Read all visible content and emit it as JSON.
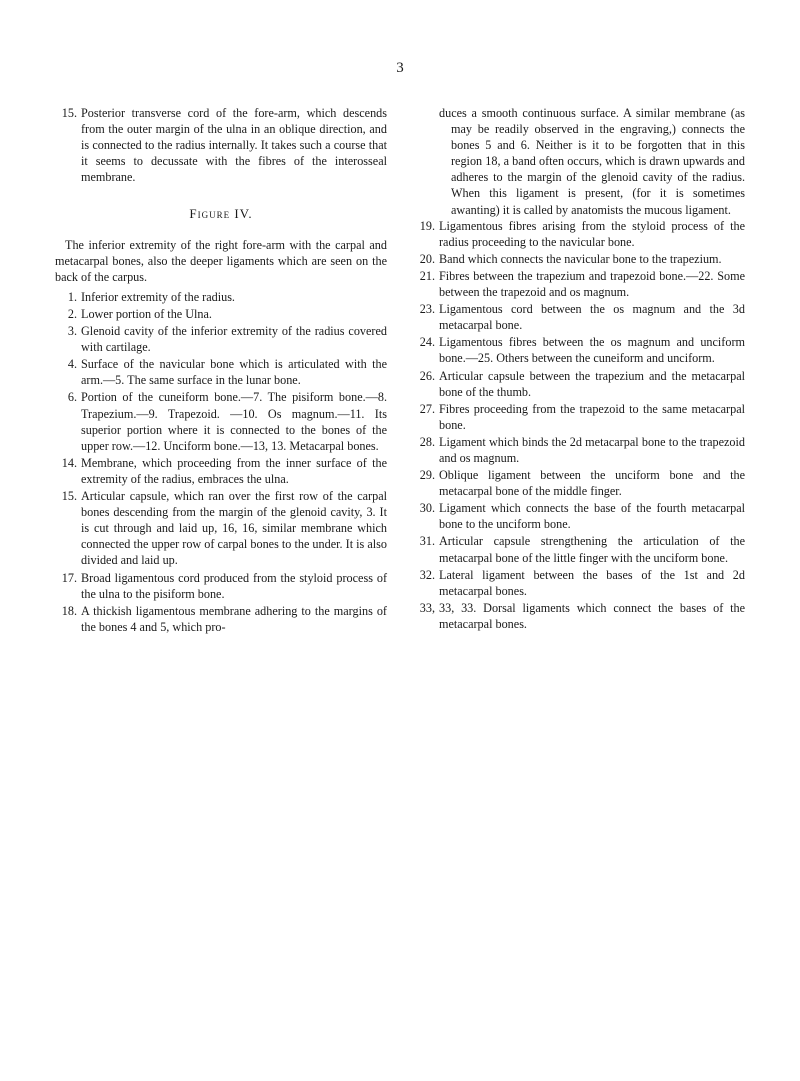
{
  "pageNumber": "3",
  "figureLabel": "Figure IV.",
  "leftColumn": {
    "item15": {
      "num": "15.",
      "text": "Posterior transverse cord of the fore-arm, which descends from the outer margin of the ulna in an oblique direction, and is connected to the radius internally. It takes such a course that it seems to decussate with the fibres of the interosseal membrane."
    },
    "intro": "The inferior extremity of the right fore-arm with the carpal and metacarpal bones, also the deeper ligaments which are seen on the back of the carpus.",
    "item1": {
      "num": "1.",
      "text": "Inferior extremity of the radius."
    },
    "item2": {
      "num": "2.",
      "text": "Lower portion of the Ulna."
    },
    "item3": {
      "num": "3.",
      "text": "Glenoid cavity of the inferior extremity of the radius covered with cartilage."
    },
    "item4": {
      "num": "4.",
      "text": "Surface of the navicular bone which is articulated with the arm.—5. The same surface in the lunar bone."
    },
    "item6": {
      "num": "6.",
      "text": "Portion of the cuneiform bone.—7. The pisiform bone.—8. Trapezium.—9. Trapezoid. —10. Os magnum.—11. Its superior portion where it is connected to the bones of the upper row.—12. Unciform bone.—13, 13. Metacarpal bones."
    },
    "item14": {
      "num": "14.",
      "text": "Membrane, which proceeding from the inner surface of the extremity of the radius, embraces the ulna."
    },
    "item15b": {
      "num": "15.",
      "text": "Articular capsule, which ran over the first row of the carpal bones descending from the margin of the glenoid cavity, 3. It is cut through and laid up, 16, 16, similar membrane which connected the upper row of carpal bones to the under. It is also divided and laid up."
    },
    "item17": {
      "num": "17.",
      "text": "Broad ligamentous cord produced from the styloid process of the ulna to the pisiform bone."
    },
    "item18": {
      "num": "18.",
      "text": "A thickish ligamentous membrane adhering to the margins of the bones 4 and 5, which pro-"
    }
  },
  "rightColumn": {
    "cont": "duces a smooth continuous surface. A similar membrane (as may be readily observed in the engraving,) connects the bones 5 and 6. Neither is it to be forgotten that in this region 18, a band often occurs, which is drawn upwards and adheres to the margin of the glenoid cavity of the radius. When this ligament is present, (for it is sometimes awanting) it is called by anatomists the mucous ligament.",
    "item19": {
      "num": "19.",
      "text": "Ligamentous fibres arising from the styloid process of the radius proceeding to the navicular bone."
    },
    "item20": {
      "num": "20.",
      "text": "Band which connects the navicular bone to the trapezium."
    },
    "item21": {
      "num": "21.",
      "text": "Fibres between the trapezium and trapezoid bone.—22. Some between the trapezoid and os magnum."
    },
    "item23": {
      "num": "23.",
      "text": "Ligamentous cord between the os magnum and the 3d metacarpal bone."
    },
    "item24": {
      "num": "24.",
      "text": "Ligamentous fibres between the os magnum and unciform bone.—25. Others between the cuneiform and unciform."
    },
    "item26": {
      "num": "26.",
      "text": "Articular capsule between the trapezium and the metacarpal bone of the thumb."
    },
    "item27": {
      "num": "27.",
      "text": "Fibres proceeding from the trapezoid to the same metacarpal bone."
    },
    "item28": {
      "num": "28.",
      "text": "Ligament which binds the 2d metacarpal bone to the trapezoid and os magnum."
    },
    "item29": {
      "num": "29.",
      "text": "Oblique ligament between the unciform bone and the metacarpal bone of the middle finger."
    },
    "item30": {
      "num": "30.",
      "text": "Ligament which connects the base of the fourth metacarpal bone to the unciform bone."
    },
    "item31": {
      "num": "31.",
      "text": "Articular capsule strengthening the articulation of the metacarpal bone of the little finger with the unciform bone."
    },
    "item32": {
      "num": "32.",
      "text": "Lateral ligament between the bases of the 1st and 2d metacarpal bones."
    },
    "item33": {
      "num": "33,",
      "text": "33, 33. Dorsal ligaments which connect the bases of the metacarpal bones."
    }
  }
}
